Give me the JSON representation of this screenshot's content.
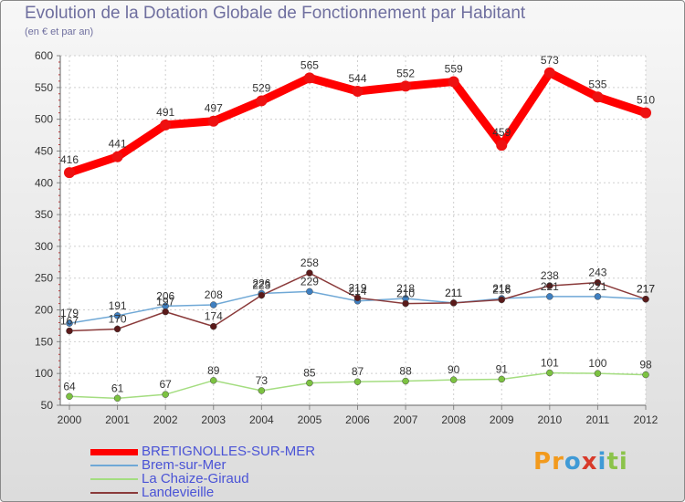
{
  "header": {
    "title": "Evolution de la Dotation Globale de Fonctionnement par Habitant",
    "subtitle": "(en € et par an)"
  },
  "logo": {
    "letters": [
      "P",
      "r",
      "o",
      "x",
      "i",
      "t",
      "i"
    ],
    "colors": [
      "#f29a1d",
      "#f29a1d",
      "#3f9ad6",
      "#d83a2a",
      "#3f9ad6",
      "#8bc34a",
      "#8bc34a"
    ]
  },
  "chart_data": {
    "type": "line",
    "title": "Evolution de la Dotation Globale de Fonctionnement par Habitant",
    "subtitle": "(en € et par an)",
    "xlabel": "",
    "ylabel": "",
    "x": [
      "2000",
      "2001",
      "2002",
      "2003",
      "2004",
      "2005",
      "2006",
      "2007",
      "2008",
      "2009",
      "2010",
      "2011",
      "2012"
    ],
    "ylim": [
      50,
      600
    ],
    "yticks": [
      50,
      100,
      150,
      200,
      250,
      300,
      350,
      400,
      450,
      500,
      550,
      600
    ],
    "grid": true,
    "legend_position": "bottom-left",
    "series": [
      {
        "name": "BRETIGNOLLES-SUR-MER",
        "color": "#ff0000",
        "marker_color": "#ee1111",
        "emphasis": "thick",
        "values": [
          416,
          441,
          491,
          497,
          529,
          565,
          544,
          552,
          559,
          459,
          573,
          535,
          510
        ]
      },
      {
        "name": "Brem-sur-Mer",
        "color": "#6fa8d6",
        "marker_color": "#3f7fc0",
        "emphasis": "normal",
        "values": [
          179,
          191,
          206,
          208,
          226,
          229,
          214,
          218,
          211,
          218,
          221,
          221,
          217
        ]
      },
      {
        "name": "La Chaize-Giraud",
        "color": "#a4dd80",
        "marker_color": "#7cc241",
        "emphasis": "normal",
        "values": [
          64,
          61,
          67,
          89,
          73,
          85,
          87,
          88,
          90,
          91,
          101,
          100,
          98
        ]
      },
      {
        "name": "Landevieille",
        "color": "#8a3a3a",
        "marker_color": "#5a1a1a",
        "emphasis": "normal",
        "values": [
          167,
          170,
          197,
          174,
          223,
          258,
          219,
          210,
          211,
          216,
          238,
          243,
          217
        ]
      }
    ]
  }
}
